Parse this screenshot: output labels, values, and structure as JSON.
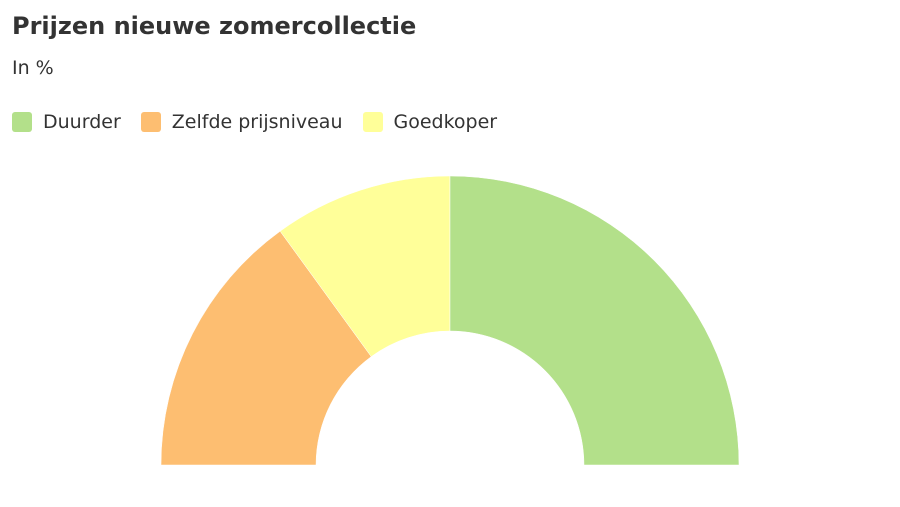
{
  "chart_data": {
    "type": "pie",
    "variant": "semi-donut",
    "title": "Prijzen nieuwe zomercollectie",
    "subtitle": "In %",
    "legend_position": "top-left",
    "categories": [
      "Duurder",
      "Zelfde prijsniveau",
      "Goedkoper"
    ],
    "values": [
      50,
      30,
      20
    ],
    "colors": [
      "#b3e08a",
      "#fdbe71",
      "#ffff99"
    ]
  }
}
